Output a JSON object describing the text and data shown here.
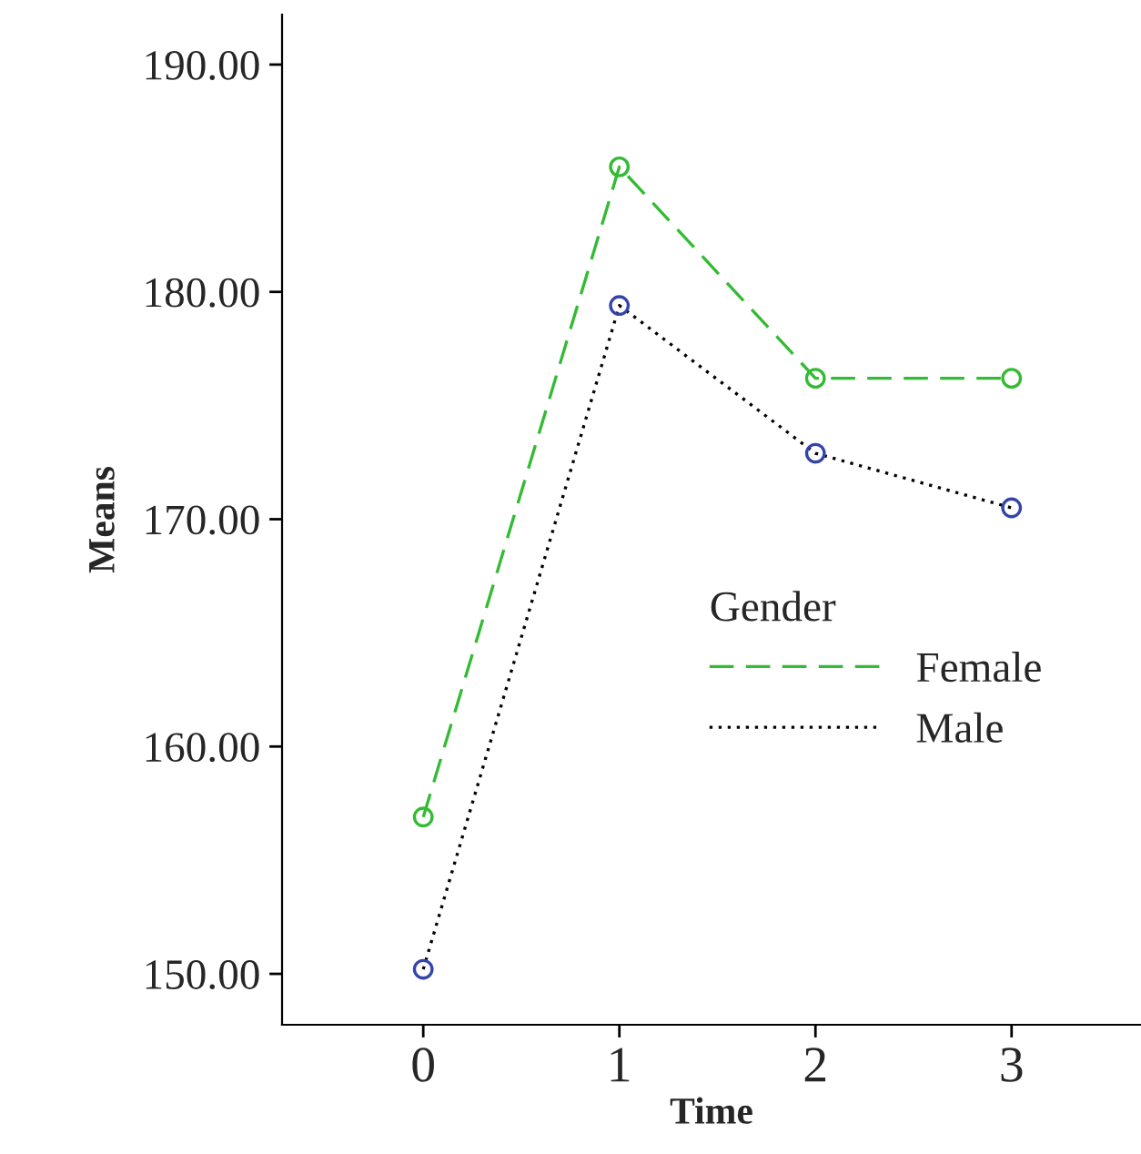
{
  "chart_data": {
    "type": "line",
    "xlabel": "Time",
    "ylabel": "Means",
    "legend_title": "Gender",
    "legend": "center right",
    "marker": "circle",
    "grid": false,
    "x": [
      0,
      1,
      2,
      3
    ],
    "series": [
      {
        "name": "Female",
        "color": "#33bb33",
        "line_style": "dashed",
        "values": [
          156.9,
          185.5,
          176.2,
          176.2
        ]
      },
      {
        "name": "Male",
        "color": "#000000",
        "colors": [
          "#3344aa",
          "#3344aa",
          "#3344aa",
          "#3344aa"
        ],
        "line_style": "dotted",
        "values": [
          150.2,
          179.4,
          172.9,
          170.5
        ]
      }
    ],
    "xlim": [
      -0.72,
      3.66
    ],
    "xticks": [
      0,
      1,
      2,
      3
    ],
    "ylim": [
      147.76,
      192.2
    ],
    "yticks": [
      {
        "value": 150,
        "label": "150.00"
      },
      {
        "value": 160,
        "label": "160.00"
      },
      {
        "value": 170,
        "label": "170.00"
      },
      {
        "value": 180,
        "label": "180.00"
      },
      {
        "value": 190,
        "label": "190.00"
      }
    ]
  }
}
